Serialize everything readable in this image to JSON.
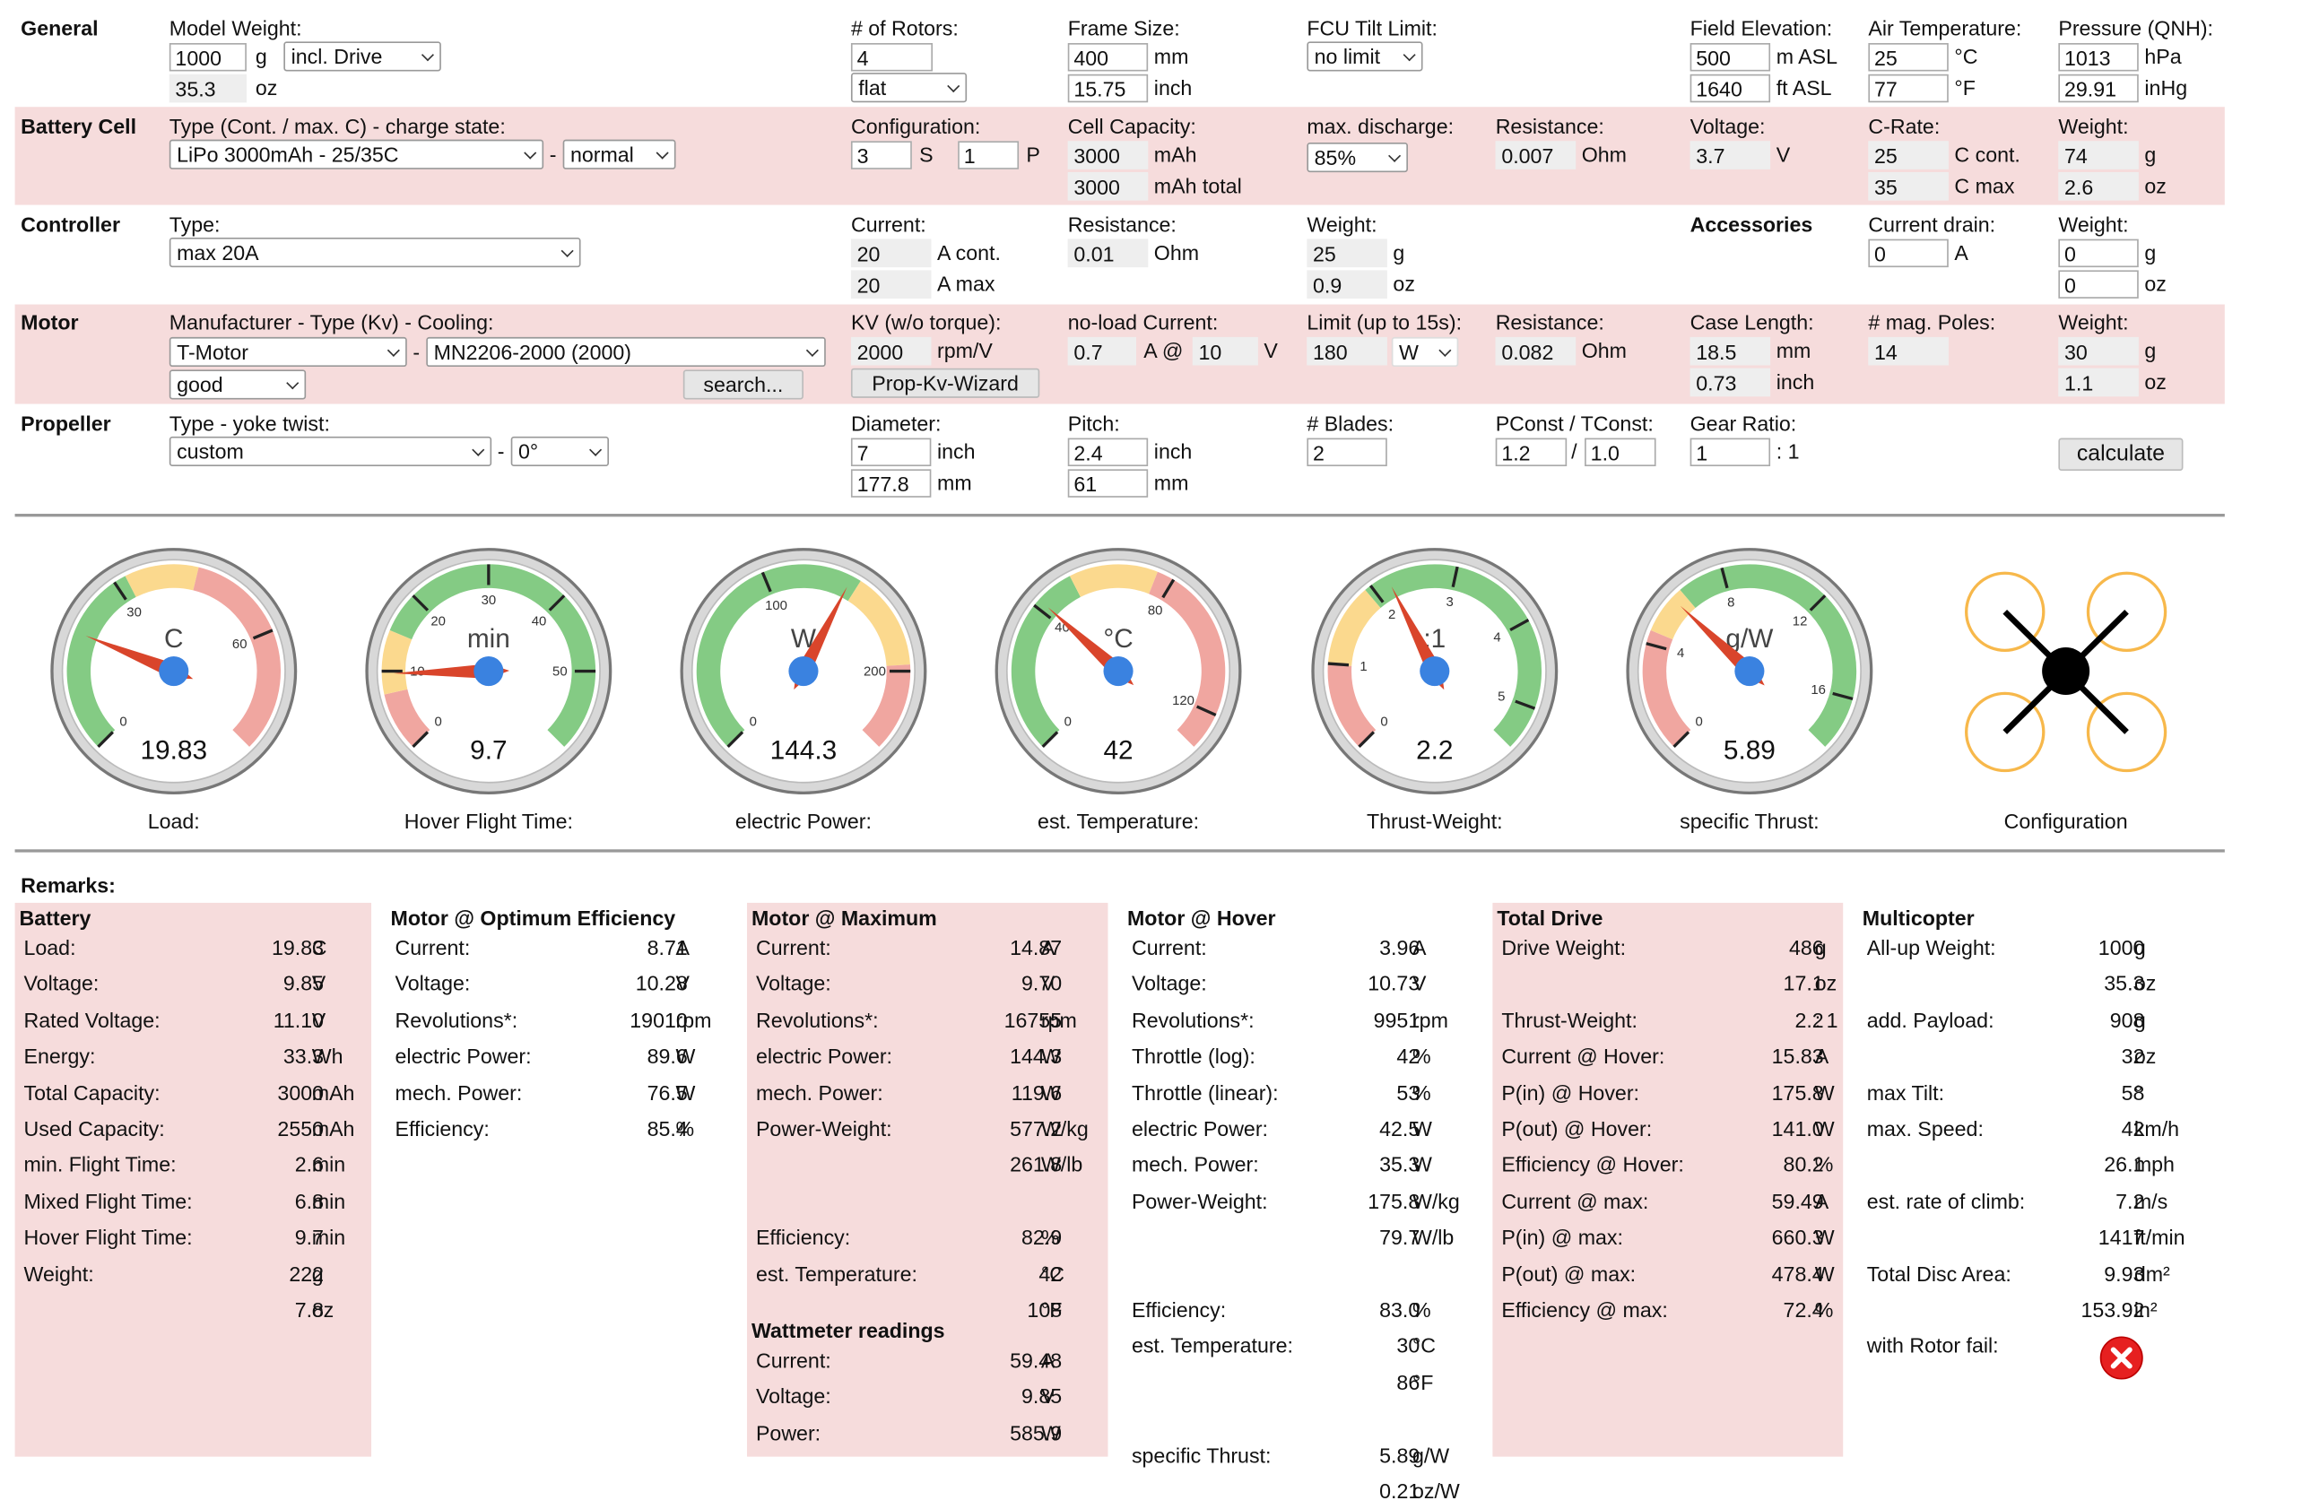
{
  "sections": {
    "general": "General",
    "battery": "Battery Cell",
    "controller": "Controller",
    "motor": "Motor",
    "propeller": "Propeller",
    "accessories": "Accessories",
    "remarks": "Remarks:"
  },
  "general": {
    "model_weight_label": "Model Weight:",
    "model_weight_g": "1000",
    "unit_g": "g",
    "weight_mode": "incl. Drive",
    "model_weight_oz": "35.3",
    "unit_oz": "oz",
    "rotors_label": "# of Rotors:",
    "rotors": "4",
    "rotor_layout": "flat",
    "frame_label": "Frame Size:",
    "frame_mm": "400",
    "unit_mm": "mm",
    "frame_inch": "15.75",
    "unit_inch": "inch",
    "tilt_label": "FCU Tilt Limit:",
    "tilt": "no limit",
    "elev_label": "Field Elevation:",
    "elev_m": "500",
    "unit_masl": "m ASL",
    "elev_ft": "1640",
    "unit_ftasl": "ft ASL",
    "temp_label": "Air Temperature:",
    "temp_c": "25",
    "unit_c": "°C",
    "temp_f": "77",
    "unit_f": "°F",
    "press_label": "Pressure (QNH):",
    "press_hpa": "1013",
    "unit_hpa": "hPa",
    "press_inhg": "29.91",
    "unit_inhg": "inHg"
  },
  "battery": {
    "type_label": "Type (Cont. / max. C) - charge state:",
    "type": "LiPo 3000mAh - 25/35C",
    "dash": "-",
    "state": "normal",
    "config_label": "Configuration:",
    "s": "3",
    "unit_s": "S",
    "p": "1",
    "unit_p": "P",
    "cap_label": "Cell Capacity:",
    "cap": "3000",
    "unit_mah": "mAh",
    "cap_total": "3000",
    "unit_mah_total": "mAh total",
    "discharge_label": "max. discharge:",
    "discharge": "85%",
    "res_label": "Resistance:",
    "res": "0.007",
    "unit_ohm": "Ohm",
    "volt_label": "Voltage:",
    "volt": "3.7",
    "unit_v": "V",
    "crate_label": "C-Rate:",
    "c_cont": "25",
    "unit_ccont": "C cont.",
    "c_max": "35",
    "unit_cmax": "C max",
    "weight_label": "Weight:",
    "weight_g": "74",
    "weight_oz": "2.6"
  },
  "controller": {
    "type_label": "Type:",
    "type": "max 20A",
    "current_label": "Current:",
    "cur_cont": "20",
    "unit_acont": "A cont.",
    "cur_max": "20",
    "unit_amax": "A max",
    "res_label": "Resistance:",
    "res": "0.01",
    "weight_label": "Weight:",
    "weight_g": "25",
    "weight_oz": "0.9",
    "acc_drain_label": "Current drain:",
    "acc_drain": "0",
    "unit_a": "A",
    "acc_weight_label": "Weight:",
    "acc_weight_g": "0",
    "acc_weight_oz": "0"
  },
  "motor": {
    "mfr_label": "Manufacturer - Type (Kv) - Cooling:",
    "mfr": "T-Motor",
    "model": "MN2206-2000 (2000)",
    "cooling": "good",
    "search": "search...",
    "kv_label": "KV (w/o torque):",
    "kv": "2000",
    "unit_rpmv": "rpm/V",
    "wizard": "Prop-Kv-Wizard",
    "noload_label": "no-load Current:",
    "noload": "0.7",
    "unit_a_at": "A @",
    "noload_v": "10",
    "unit_v": "V",
    "limit_label": "Limit (up to 15s):",
    "limit": "180",
    "limit_unit": "W",
    "res_label": "Resistance:",
    "res": "0.082",
    "case_label": "Case Length:",
    "case_mm": "18.5",
    "case_inch": "0.73",
    "poles_label": "# mag. Poles:",
    "poles": "14",
    "weight_label": "Weight:",
    "weight_g": "30",
    "weight_oz": "1.1"
  },
  "propeller": {
    "type_label": "Type - yoke twist:",
    "type": "custom",
    "twist": "0°",
    "dia_label": "Diameter:",
    "dia_inch": "7",
    "dia_mm": "177.8",
    "pitch_label": "Pitch:",
    "pitch_inch": "2.4",
    "pitch_mm": "61",
    "blades_label": "# Blades:",
    "blades": "2",
    "pconst_label": "PConst / TConst:",
    "pconst": "1.2",
    "slash": "/",
    "tconst": "1.0",
    "gear_label": "Gear Ratio:",
    "gear": "1",
    "gear_unit": ": 1",
    "calculate": "calculate"
  },
  "gauges": [
    {
      "label": "Load:",
      "unit": "C",
      "value": "19.83",
      "ticks": [
        "0",
        "30",
        "60"
      ]
    },
    {
      "label": "Hover Flight Time:",
      "unit": "min",
      "value": "9.7",
      "ticks": [
        "0",
        "10",
        "20",
        "30",
        "40",
        "50"
      ]
    },
    {
      "label": "electric Power:",
      "unit": "W",
      "value": "144.3",
      "ticks": [
        "0",
        "100",
        "200"
      ]
    },
    {
      "label": "est. Temperature:",
      "unit": "°C",
      "value": "42",
      "ticks": [
        "0",
        "40",
        "80",
        "120"
      ]
    },
    {
      "label": "Thrust-Weight:",
      "unit": ":1",
      "value": "2.2",
      "ticks": [
        "0",
        "1",
        "2",
        "3",
        "4",
        "5"
      ]
    },
    {
      "label": "specific Thrust:",
      "unit": "g/W",
      "value": "5.89",
      "ticks": [
        "0",
        "4",
        "8",
        "12",
        "16"
      ]
    }
  ],
  "config_label": "Configuration",
  "colors": {
    "band": "#f6dcdc",
    "green": "#84cb84",
    "yellow": "#fbd98e",
    "red": "#f0a6a0",
    "needle": "#d9452b",
    "hub": "#3a82e0",
    "prop_ring": "#f7b84b"
  },
  "remarks": {
    "battery": {
      "title": "Battery",
      "rows": [
        [
          "Load:",
          "19.83",
          "C"
        ],
        [
          "Voltage:",
          "9.85",
          "V"
        ],
        [
          "Rated Voltage:",
          "11.10",
          "V"
        ],
        [
          "Energy:",
          "33.3",
          "Wh"
        ],
        [
          "Total Capacity:",
          "3000",
          "mAh"
        ],
        [
          "Used Capacity:",
          "2550",
          "mAh"
        ],
        [
          "min. Flight Time:",
          "2.6",
          "min"
        ],
        [
          "Mixed Flight Time:",
          "6.8",
          "min"
        ],
        [
          "Hover Flight Time:",
          "9.7",
          "min"
        ],
        [
          "Weight:",
          "222",
          "g"
        ],
        [
          "",
          "7.8",
          "oz"
        ]
      ]
    },
    "opt": {
      "title": "Motor @ Optimum Efficiency",
      "rows": [
        [
          "Current:",
          "8.71",
          "A"
        ],
        [
          "Voltage:",
          "10.28",
          "V"
        ],
        [
          "Revolutions*:",
          "19010",
          "rpm"
        ],
        [
          "electric Power:",
          "89.6",
          "W"
        ],
        [
          "mech. Power:",
          "76.5",
          "W"
        ],
        [
          "Efficiency:",
          "85.4",
          "%"
        ]
      ]
    },
    "max": {
      "title": "Motor @ Maximum",
      "rows": [
        [
          "Current:",
          "14.87",
          "A"
        ],
        [
          "Voltage:",
          "9.70",
          "V"
        ],
        [
          "Revolutions*:",
          "16755",
          "rpm"
        ],
        [
          "electric Power:",
          "144.3",
          "W"
        ],
        [
          "mech. Power:",
          "119.6",
          "W"
        ],
        [
          "Power-Weight:",
          "577.2",
          "W/kg"
        ],
        [
          "",
          "261.8",
          "W/lb"
        ],
        [
          "Efficiency:",
          "82.9",
          "%"
        ],
        [
          "est. Temperature:",
          "42",
          "°C"
        ],
        [
          "",
          "108",
          "°F"
        ]
      ]
    },
    "watt": {
      "title": "Wattmeter readings",
      "rows": [
        [
          "Current:",
          "59.48",
          "A"
        ],
        [
          "Voltage:",
          "9.85",
          "V"
        ],
        [
          "Power:",
          "585.9",
          "W"
        ]
      ]
    },
    "hover": {
      "title": "Motor @ Hover",
      "rows": [
        [
          "Current:",
          "3.96",
          "A"
        ],
        [
          "Voltage:",
          "10.73",
          "V"
        ],
        [
          "Revolutions*:",
          "9951",
          "rpm"
        ],
        [
          "Throttle (log):",
          "42",
          "%"
        ],
        [
          "Throttle (linear):",
          "53",
          "%"
        ],
        [
          "electric Power:",
          "42.5",
          "W"
        ],
        [
          "mech. Power:",
          "35.3",
          "W"
        ],
        [
          "Power-Weight:",
          "175.8",
          "W/kg"
        ],
        [
          "",
          "79.7",
          "W/lb"
        ],
        [
          "Efficiency:",
          "83.0",
          "%"
        ],
        [
          "est. Temperature:",
          "30",
          "°C"
        ],
        [
          "",
          "86",
          "°F"
        ],
        [
          "specific Thrust:",
          "5.89",
          "g/W"
        ],
        [
          "",
          "0.21",
          "oz/W"
        ]
      ]
    },
    "total": {
      "title": "Total Drive",
      "rows": [
        [
          "Drive Weight:",
          "486",
          "g"
        ],
        [
          "",
          "17.1",
          "oz"
        ],
        [
          "Thrust-Weight:",
          "2.2",
          ": 1"
        ],
        [
          "Current @ Hover:",
          "15.83",
          "A"
        ],
        [
          "P(in) @ Hover:",
          "175.8",
          "W"
        ],
        [
          "P(out) @ Hover:",
          "141.0",
          "W"
        ],
        [
          "Efficiency @ Hover:",
          "80.2",
          "%"
        ],
        [
          "Current @ max:",
          "59.49",
          "A"
        ],
        [
          "P(in) @ max:",
          "660.3",
          "W"
        ],
        [
          "P(out) @ max:",
          "478.4",
          "W"
        ],
        [
          "Efficiency @ max:",
          "72.4",
          "%"
        ]
      ]
    },
    "multi": {
      "title": "Multicopter",
      "rows": [
        [
          "All-up Weight:",
          "1000",
          "g"
        ],
        [
          "",
          "35.3",
          "oz"
        ],
        [
          "add. Payload:",
          "908",
          "g"
        ],
        [
          "",
          "32",
          "oz"
        ],
        [
          "max Tilt:",
          "58",
          "°"
        ],
        [
          "max. Speed:",
          "42",
          "km/h"
        ],
        [
          "",
          "26.1",
          "mph"
        ],
        [
          "est. rate of climb:",
          "7.2",
          "m/s"
        ],
        [
          "",
          "1417",
          "ft/min"
        ],
        [
          "Total Disc Area:",
          "9.93",
          "dm²"
        ],
        [
          "",
          "153.92",
          "in²"
        ],
        [
          "with Rotor fail:",
          "",
          ""
        ]
      ]
    }
  }
}
